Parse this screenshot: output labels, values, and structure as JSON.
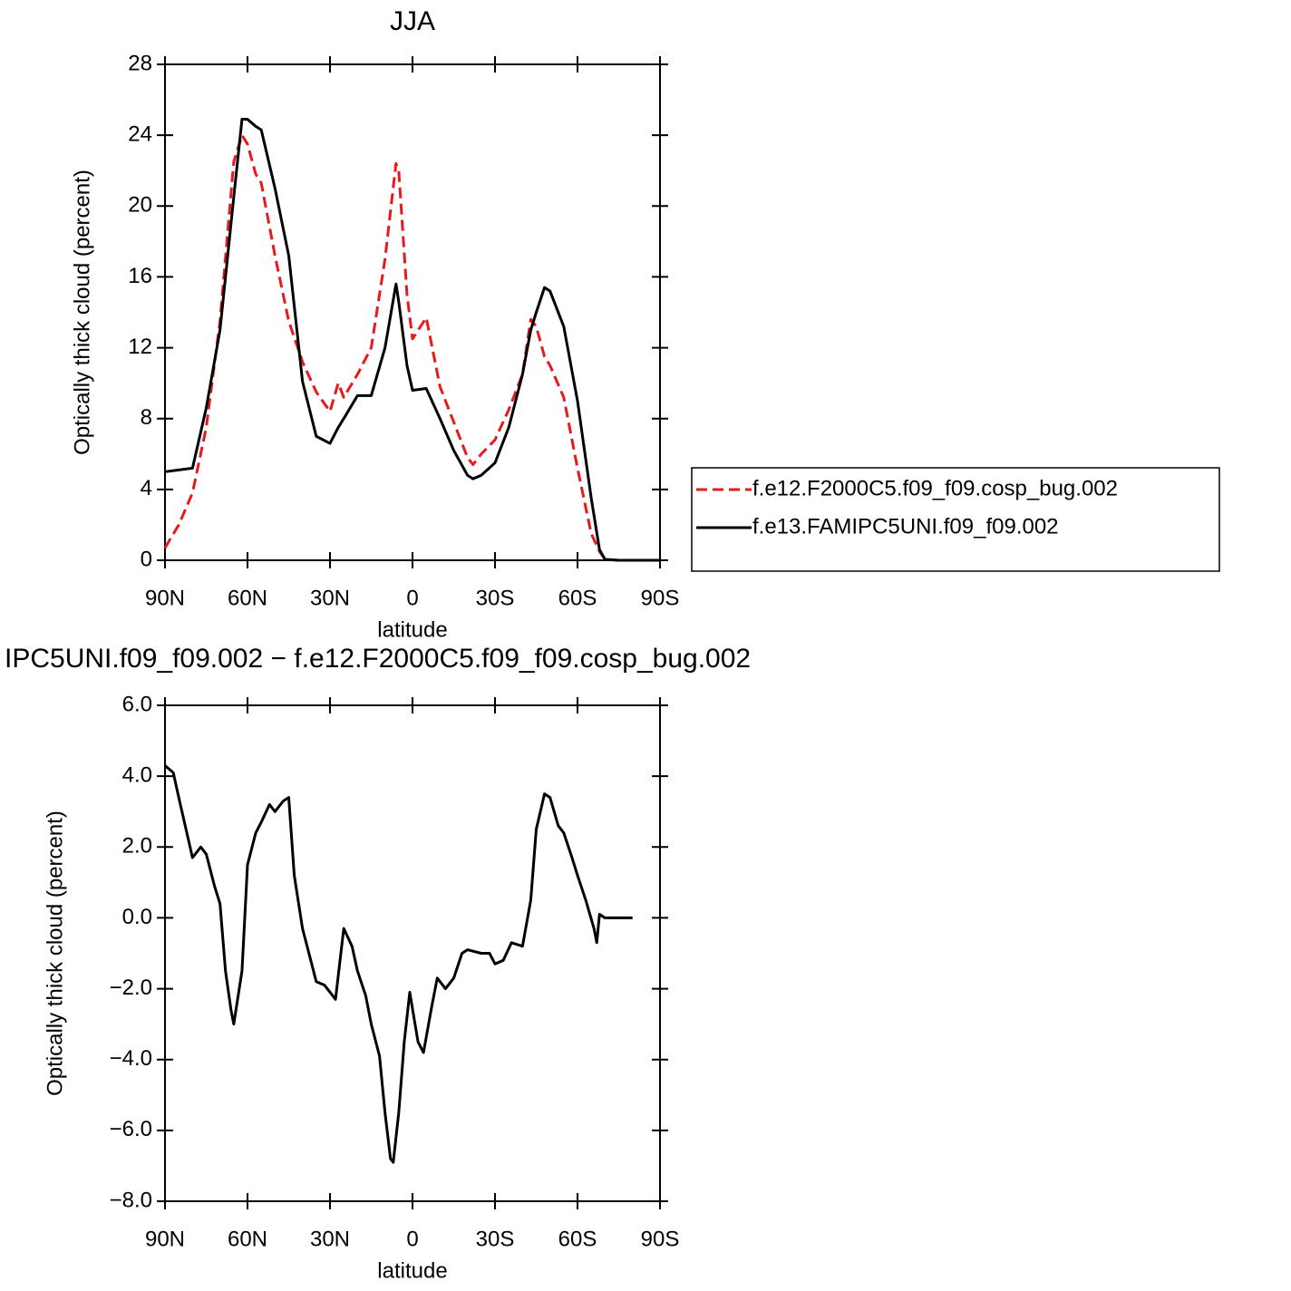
{
  "chart_data": [
    {
      "type": "line",
      "title": "JJA",
      "xlabel": "latitude",
      "ylabel": "Optically thick cloud (percent)",
      "x": [
        90,
        85,
        80,
        75,
        70,
        65,
        62,
        60,
        57,
        55,
        50,
        45,
        40,
        35,
        30,
        27,
        25,
        20,
        15,
        10,
        6,
        5,
        2,
        0,
        -5,
        -10,
        -15,
        -20,
        -22,
        -25,
        -30,
        -35,
        -40,
        -43,
        -45,
        -48,
        -50,
        -55,
        -60,
        -65,
        -68,
        -70,
        -75,
        -80,
        -85,
        -90
      ],
      "series": [
        {
          "name": "f.e12.F2000C5.f09_f09.cosp_bug.002",
          "color": "#e8191c",
          "line_style": "dashed",
          "values": [
            0.7,
            2.0,
            3.8,
            7.5,
            13.5,
            22.5,
            24.0,
            23.5,
            21.8,
            21.3,
            17.2,
            13.5,
            11.2,
            9.5,
            8.4,
            10.0,
            9.2,
            10.5,
            12.0,
            17.0,
            22.4,
            22.0,
            15.0,
            12.5,
            13.7,
            9.8,
            7.8,
            5.8,
            5.4,
            6.0,
            6.8,
            8.5,
            10.5,
            13.6,
            13.2,
            11.5,
            11.0,
            9.2,
            5.2,
            1.5,
            0.5,
            0.05,
            0,
            0,
            0,
            0
          ]
        },
        {
          "name": "f.e13.FAMIPC5UNI.f09_f09.002",
          "color": "#000000",
          "line_style": "solid",
          "values": [
            5.0,
            5.1,
            5.2,
            8.6,
            13.0,
            20.5,
            24.9,
            24.9,
            24.5,
            24.3,
            21.0,
            17.2,
            10.1,
            7.0,
            6.6,
            7.5,
            8.0,
            9.3,
            9.3,
            12.0,
            15.6,
            14.6,
            11.0,
            9.6,
            9.7,
            8.0,
            6.2,
            4.8,
            4.6,
            4.8,
            5.5,
            7.5,
            10.5,
            13.0,
            14.0,
            15.4,
            15.2,
            13.2,
            9.0,
            3.5,
            0.6,
            0.05,
            0,
            0,
            0,
            0
          ]
        }
      ],
      "xlim": [
        90,
        -90
      ],
      "xticks": [
        {
          "value": 90,
          "label": "90N"
        },
        {
          "value": 60,
          "label": "60N"
        },
        {
          "value": 30,
          "label": "30N"
        },
        0,
        {
          "value": -30,
          "label": "30S"
        },
        {
          "value": -60,
          "label": "60S"
        },
        {
          "value": -90,
          "label": "90S"
        }
      ],
      "ylim": [
        0,
        28
      ],
      "yticks": [
        0,
        4,
        8,
        12,
        16,
        20,
        24,
        28
      ],
      "legend": "right"
    },
    {
      "type": "line",
      "title": "IPC5UNI.f09_f09.002 − f.e12.F2000C5.f09_f09.cosp_bug.002",
      "xlabel": "latitude",
      "ylabel": "Optically thick cloud (percent)",
      "x": [
        90,
        87,
        85,
        80,
        77,
        75,
        72,
        70,
        68,
        66,
        65,
        62,
        60,
        57,
        55,
        52,
        50,
        47,
        45,
        43,
        40,
        37,
        35,
        32,
        30,
        28,
        25,
        22,
        20,
        17,
        15,
        12,
        10,
        8,
        7,
        5,
        3,
        1,
        -2,
        -4,
        -7,
        -9,
        -12,
        -15,
        -18,
        -20,
        -25,
        -28,
        -30,
        -33,
        -36,
        -40,
        -43,
        -45,
        -48,
        -50,
        -53,
        -55,
        -58,
        -60,
        -63,
        -66,
        -67,
        -68,
        -70,
        -75,
        -80
      ],
      "series": [
        {
          "color": "#000000",
          "line_style": "solid",
          "values": [
            4.3,
            4.1,
            3.4,
            1.7,
            2.0,
            1.8,
            0.9,
            0.4,
            -1.5,
            -2.6,
            -3.0,
            -1.5,
            1.5,
            2.4,
            2.7,
            3.2,
            3.0,
            3.3,
            3.4,
            1.2,
            -0.3,
            -1.2,
            -1.8,
            -1.9,
            -2.1,
            -2.3,
            -0.3,
            -0.8,
            -1.5,
            -2.2,
            -3.0,
            -3.9,
            -5.5,
            -6.8,
            -6.9,
            -5.5,
            -3.5,
            -2.1,
            -3.5,
            -3.8,
            -2.5,
            -1.7,
            -2.0,
            -1.7,
            -1.0,
            -0.9,
            -1.0,
            -1.0,
            -1.3,
            -1.2,
            -0.7,
            -0.8,
            0.5,
            2.5,
            3.5,
            3.4,
            2.6,
            2.4,
            1.7,
            1.2,
            0.5,
            -0.3,
            -0.7,
            0.1,
            0.0,
            0.0,
            0.0
          ]
        }
      ],
      "xlim": [
        90,
        -90
      ],
      "xticks": [
        {
          "value": 90,
          "label": "90N"
        },
        {
          "value": 60,
          "label": "60N"
        },
        {
          "value": 30,
          "label": "30N"
        },
        0,
        {
          "value": -30,
          "label": "30S"
        },
        {
          "value": -60,
          "label": "60S"
        },
        {
          "value": -90,
          "label": "90S"
        }
      ],
      "ylim": [
        -8,
        6
      ],
      "yticks": [
        {
          "value": -8,
          "label": "−8.0"
        },
        {
          "value": -6,
          "label": "−6.0"
        },
        {
          "value": -4,
          "label": "−4.0"
        },
        {
          "value": -2,
          "label": "−2.0"
        },
        {
          "value": 0,
          "label": "0.0"
        },
        {
          "value": 2,
          "label": "2.0"
        },
        {
          "value": 4,
          "label": "4.0"
        },
        {
          "value": 6,
          "label": "6.0"
        }
      ]
    }
  ]
}
